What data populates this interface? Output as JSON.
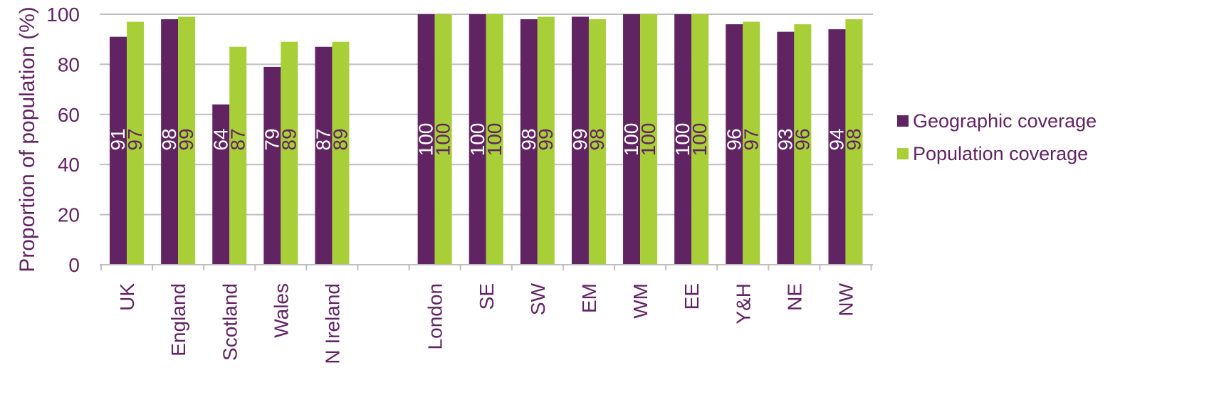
{
  "chart_data": {
    "type": "bar",
    "title": "",
    "xlabel": "",
    "ylabel": "Proportion of population (%)",
    "ylim": [
      0,
      100
    ],
    "yticks": [
      0,
      20,
      40,
      60,
      80,
      100
    ],
    "grid": true,
    "legend_position": "right",
    "categories": [
      "UK",
      "England",
      "Scotland",
      "Wales",
      "N Ireland",
      "",
      "London",
      "SE",
      "SW",
      "EM",
      "WM",
      "EE",
      "Y&H",
      "NE",
      "NW"
    ],
    "series": [
      {
        "name": "Geographic coverage",
        "color": "#612463",
        "values": [
          91,
          98,
          64,
          79,
          87,
          null,
          100,
          100,
          98,
          99,
          100,
          100,
          96,
          93,
          94
        ],
        "labels": [
          "91",
          "98",
          "64",
          "79",
          "87",
          "",
          "100",
          "100",
          "98",
          "99",
          "100",
          "100",
          "96",
          "93",
          "94"
        ]
      },
      {
        "name": "Population coverage",
        "color": "#A8CF38",
        "values": [
          97,
          99,
          87,
          89,
          89,
          null,
          100,
          100,
          99,
          98,
          100,
          100,
          97,
          96,
          98
        ],
        "labels": [
          "97",
          "99",
          "87",
          "89",
          "89",
          "",
          "100",
          "100",
          "99",
          "98",
          "100",
          "100",
          "97",
          "96",
          "98"
        ]
      }
    ]
  },
  "colors": {
    "text": "#612463",
    "grid": "#BFBFBF",
    "axis": "#BFBFBF"
  }
}
